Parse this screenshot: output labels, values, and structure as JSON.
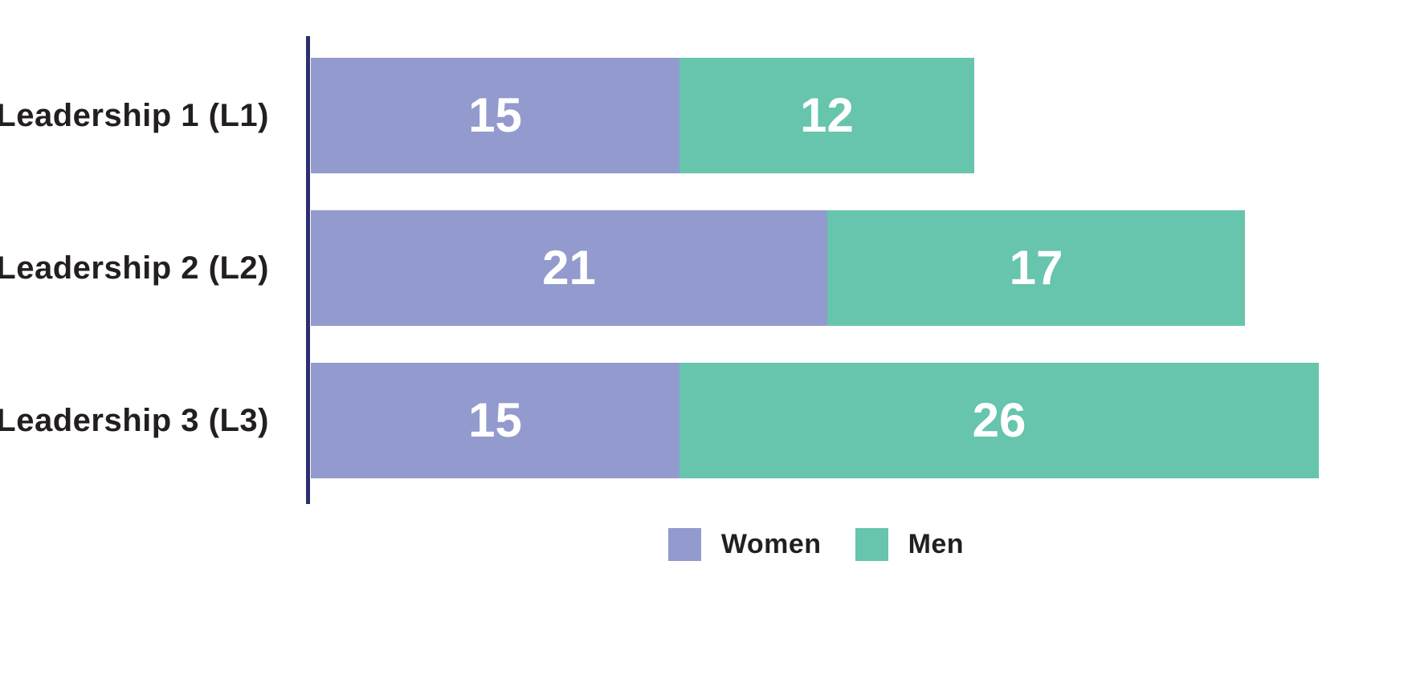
{
  "chart_data": {
    "type": "bar",
    "orientation": "horizontal",
    "stacked": true,
    "title": "",
    "xlabel": "",
    "ylabel": "",
    "categories": [
      "Leadership 1 (L1)",
      "Leadership 2 (L2)",
      "Leadership 3 (L3)"
    ],
    "series": [
      {
        "name": "Women",
        "color": "#939ACD",
        "values": [
          15,
          21,
          15
        ]
      },
      {
        "name": "Men",
        "color": "#67C4AD",
        "values": [
          12,
          17,
          26
        ]
      }
    ],
    "totals": [
      27,
      38,
      41
    ],
    "xlim": [
      0,
      41
    ],
    "grid": false,
    "value_labels_position": "inside-center",
    "legend_position": "bottom-center",
    "colors": {
      "axis_line": "#2B2F6F",
      "category_label_text": "#231F20",
      "value_label_text": "#FFFFFF",
      "legend_text": "#231F20",
      "background": "#FFFFFF"
    }
  }
}
